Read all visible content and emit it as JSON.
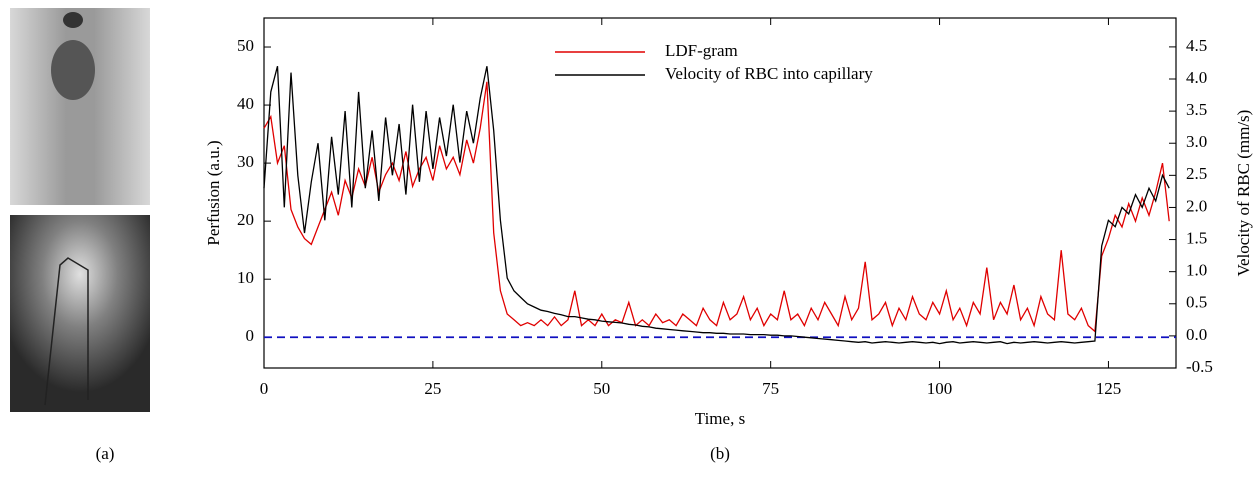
{
  "panel_labels": [
    "(a)",
    "(b)"
  ],
  "chart_data": {
    "type": "line",
    "x_label": "Time, s",
    "y_label": "Perfusion (a.u.)",
    "y2_label": "Velocity of RBC (mm/s)",
    "x": [
      0,
      1,
      2,
      3,
      4,
      5,
      6,
      7,
      8,
      9,
      10,
      11,
      12,
      13,
      14,
      15,
      16,
      17,
      18,
      19,
      20,
      21,
      22,
      23,
      24,
      25,
      26,
      27,
      28,
      29,
      30,
      31,
      32,
      33,
      34,
      35,
      36,
      37,
      38,
      39,
      40,
      41,
      42,
      43,
      44,
      45,
      46,
      47,
      48,
      49,
      50,
      51,
      52,
      53,
      54,
      55,
      56,
      57,
      58,
      59,
      60,
      61,
      62,
      63,
      64,
      65,
      66,
      67,
      68,
      69,
      70,
      71,
      72,
      73,
      74,
      75,
      76,
      77,
      78,
      79,
      80,
      81,
      82,
      83,
      84,
      85,
      86,
      87,
      88,
      89,
      90,
      91,
      92,
      93,
      94,
      95,
      96,
      97,
      98,
      99,
      100,
      101,
      102,
      103,
      104,
      105,
      106,
      107,
      108,
      109,
      110,
      111,
      112,
      113,
      114,
      115,
      116,
      117,
      118,
      119,
      120,
      121,
      122,
      123,
      124,
      125,
      126,
      127,
      128,
      129,
      130,
      131,
      132,
      133,
      134
    ],
    "series": [
      {
        "name": "LDF-gram",
        "color": "#e00000",
        "axis": "y",
        "values": [
          36,
          38,
          30,
          33,
          22,
          19,
          17,
          16,
          19,
          22,
          25,
          21,
          27,
          24,
          29,
          26,
          31,
          25,
          28,
          30,
          27,
          32,
          26,
          29,
          31,
          27,
          33,
          29,
          31,
          28,
          34,
          30,
          36,
          44,
          18,
          8,
          4,
          3,
          2,
          2.5,
          2,
          3,
          2,
          3.5,
          2,
          3,
          8,
          2,
          3,
          2,
          4,
          2,
          3,
          2.5,
          6,
          2,
          3,
          2,
          4,
          2.5,
          3,
          2,
          4,
          3,
          2,
          5,
          3,
          2,
          6,
          3,
          4,
          7,
          3,
          5,
          2,
          4,
          3,
          8,
          3,
          4,
          2,
          5,
          3,
          6,
          4,
          2,
          7,
          3,
          5,
          13,
          3,
          4,
          6,
          2,
          5,
          3,
          7,
          4,
          3,
          6,
          4,
          8,
          3,
          5,
          2,
          6,
          4,
          12,
          3,
          6,
          4,
          9,
          3,
          5,
          2,
          7,
          4,
          3,
          15,
          4,
          3,
          5,
          2,
          1,
          14,
          17,
          21,
          19,
          23,
          20,
          24,
          21,
          25,
          30,
          20
        ]
      },
      {
        "name": "Velocity of RBC into capillary",
        "color": "#000000",
        "axis": "y2",
        "values": [
          2.3,
          3.8,
          4.2,
          2.0,
          4.1,
          2.5,
          1.6,
          2.4,
          3.0,
          1.8,
          3.1,
          2.2,
          3.5,
          2.0,
          3.8,
          2.3,
          3.2,
          2.1,
          3.4,
          2.5,
          3.3,
          2.2,
          3.6,
          2.4,
          3.5,
          2.6,
          3.4,
          2.8,
          3.6,
          2.7,
          3.5,
          3.0,
          3.7,
          4.2,
          3.2,
          1.8,
          0.9,
          0.7,
          0.6,
          0.5,
          0.45,
          0.4,
          0.38,
          0.35,
          0.33,
          0.3,
          0.3,
          0.28,
          0.26,
          0.25,
          0.23,
          0.22,
          0.21,
          0.2,
          0.18,
          0.17,
          0.15,
          0.14,
          0.12,
          0.11,
          0.1,
          0.09,
          0.08,
          0.07,
          0.06,
          0.05,
          0.05,
          0.04,
          0.04,
          0.03,
          0.03,
          0.03,
          0.02,
          0.02,
          0.02,
          0.01,
          0.01,
          0,
          0,
          -0.01,
          -0.02,
          -0.03,
          -0.04,
          -0.05,
          -0.06,
          -0.07,
          -0.08,
          -0.09,
          -0.1,
          -0.09,
          -0.11,
          -0.1,
          -0.09,
          -0.1,
          -0.11,
          -0.1,
          -0.09,
          -0.1,
          -0.11,
          -0.1,
          -0.12,
          -0.1,
          -0.09,
          -0.11,
          -0.1,
          -0.09,
          -0.1,
          -0.11,
          -0.1,
          -0.09,
          -0.12,
          -0.1,
          -0.11,
          -0.1,
          -0.09,
          -0.1,
          -0.11,
          -0.1,
          -0.09,
          -0.1,
          -0.11,
          -0.1,
          -0.09,
          -0.08,
          1.4,
          1.8,
          1.7,
          2.0,
          1.9,
          2.2,
          2.0,
          2.3,
          2.1,
          2.5,
          2.3
        ]
      }
    ],
    "xlim": [
      0,
      135
    ],
    "xticks": [
      0,
      25,
      50,
      75,
      100,
      125
    ],
    "ylim": [
      -5.3,
      55
    ],
    "yticks": [
      0,
      10,
      20,
      30,
      40,
      50
    ],
    "y2lim": [
      -0.5,
      4.95
    ],
    "y2ticks": [
      -0.5,
      {
        "value": 0,
        "label": "0.0"
      },
      0.5,
      {
        "value": 1,
        "label": "1.0"
      },
      1.5,
      {
        "value": 2,
        "label": "2.0"
      },
      2.5,
      {
        "value": 3,
        "label": "3.0"
      },
      3.5,
      {
        "value": 4,
        "label": "4.0"
      },
      4.5
    ],
    "reference_line": {
      "y": 0,
      "color": "#1010c0"
    },
    "legend": "top"
  }
}
